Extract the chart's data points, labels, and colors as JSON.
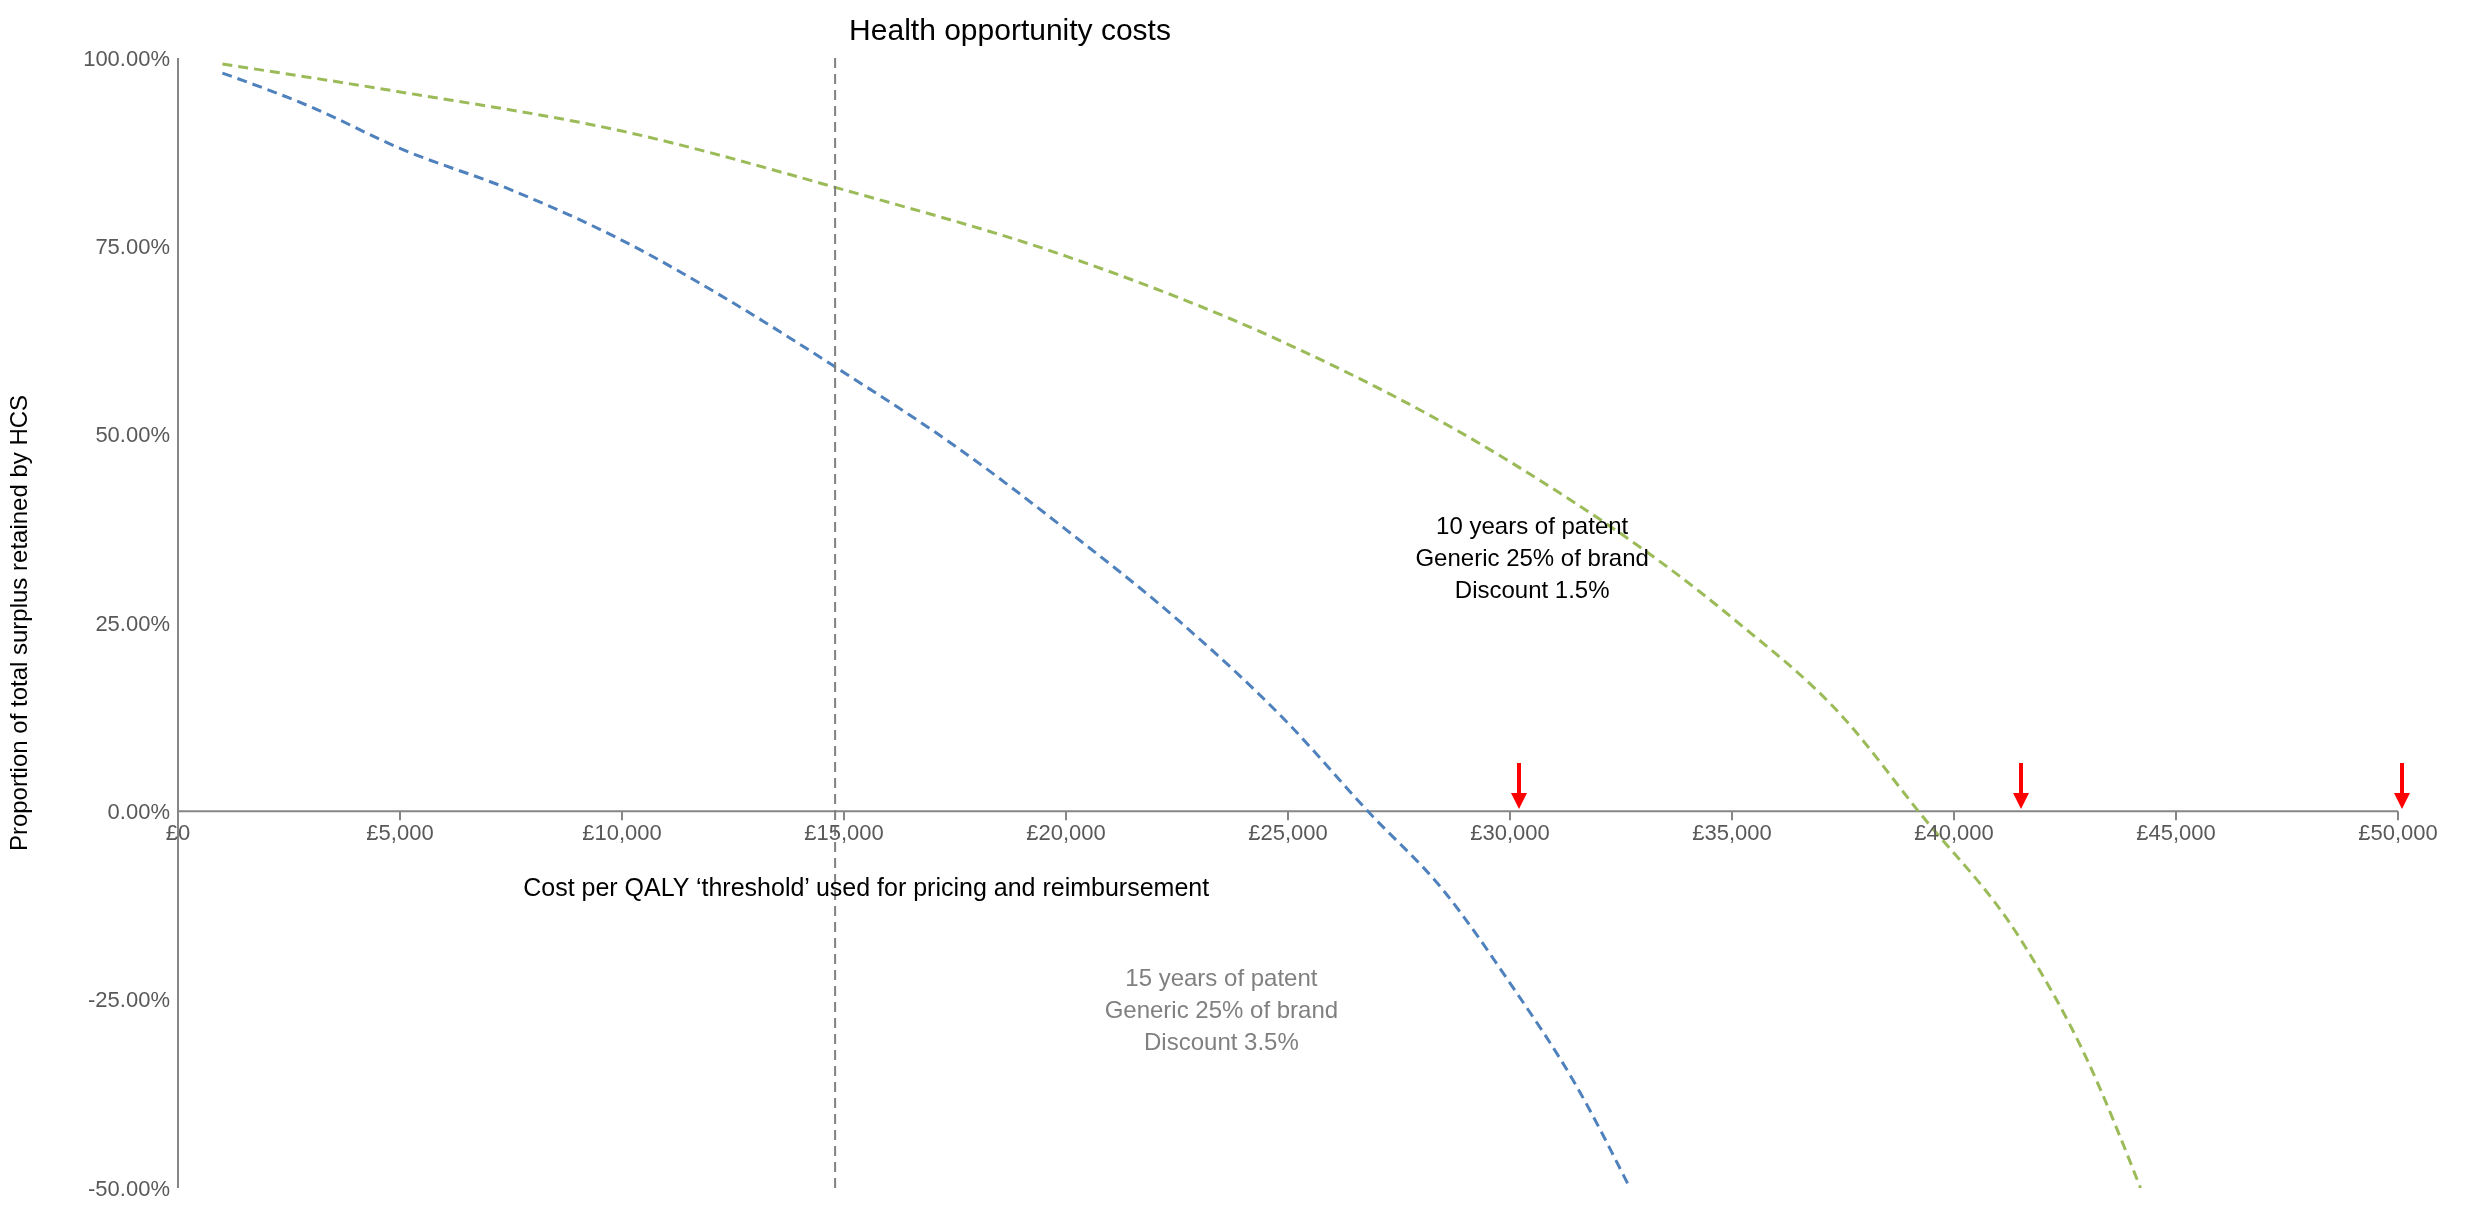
{
  "chart_data": {
    "type": "line",
    "xlabel": "Cost per QALY ‘threshold’ used for pricing and reimbursement",
    "ylabel": "Proportion of total surplus retained by HCS",
    "series": [
      {
        "color": "#4f81bd",
        "x": [
          1000,
          3000,
          5000,
          7500,
          10000,
          12500,
          14800,
          17500,
          20000,
          22500,
          25000,
          26800,
          28500,
          30000,
          31500,
          32700
        ],
        "values": [
          98,
          93.5,
          88,
          82.5,
          75.8,
          67.5,
          59,
          48.5,
          37.4,
          25.5,
          11.7,
          0,
          -10.5,
          -22.8,
          -36.5,
          -50
        ]
      },
      {
        "color": "#9bbb59",
        "x": [
          1000,
          5000,
          10000,
          15000,
          20000,
          25000,
          30000,
          35000,
          37500,
          39200,
          41500,
          43000,
          44200
        ],
        "values": [
          99.2,
          95.5,
          90.3,
          82.5,
          73.7,
          62,
          46.4,
          25.7,
          12.5,
          0,
          -17,
          -33,
          -50
        ]
      }
    ],
    "line_style": "dashed",
    "marker": "none",
    "grid": false,
    "legend": false,
    "xlim": [
      0,
      50000
    ],
    "xticks": [
      {
        "value": 0,
        "label": "£0"
      },
      {
        "value": 5000,
        "label": "£5,000"
      },
      {
        "value": 10000,
        "label": "£10,000"
      },
      {
        "value": 15000,
        "label": "£15,000"
      },
      {
        "value": 20000,
        "label": "£20,000"
      },
      {
        "value": 25000,
        "label": "£25,000"
      },
      {
        "value": 30000,
        "label": "£30,000"
      },
      {
        "value": 35000,
        "label": "£35,000"
      },
      {
        "value": 40000,
        "label": "£40,000"
      },
      {
        "value": 45000,
        "label": "£45,000"
      },
      {
        "value": 50000,
        "label": "£50,000"
      }
    ],
    "ylim": [
      -50,
      100
    ],
    "yticks": [
      {
        "value": -50,
        "label": "-50.00%"
      },
      {
        "value": -25,
        "label": "-25.00%"
      },
      {
        "value": 0,
        "label": "0.00%"
      },
      {
        "value": 25,
        "label": "25.00%"
      },
      {
        "value": 50,
        "label": "50.00%"
      },
      {
        "value": 75,
        "label": "75.00%"
      },
      {
        "value": 100,
        "label": "100.00%"
      }
    ],
    "ref_lines": [
      {
        "axis": "x",
        "value": 14800,
        "label": "Health opportunity costs",
        "color": "#808080",
        "line_style": "dashed"
      }
    ],
    "annotations": [
      "10 years of patent\nGeneric 25% of brand\nDiscount 1.5%",
      "15 years of patent\nGeneric 25% of brand\nDiscount 3.5%"
    ]
  }
}
